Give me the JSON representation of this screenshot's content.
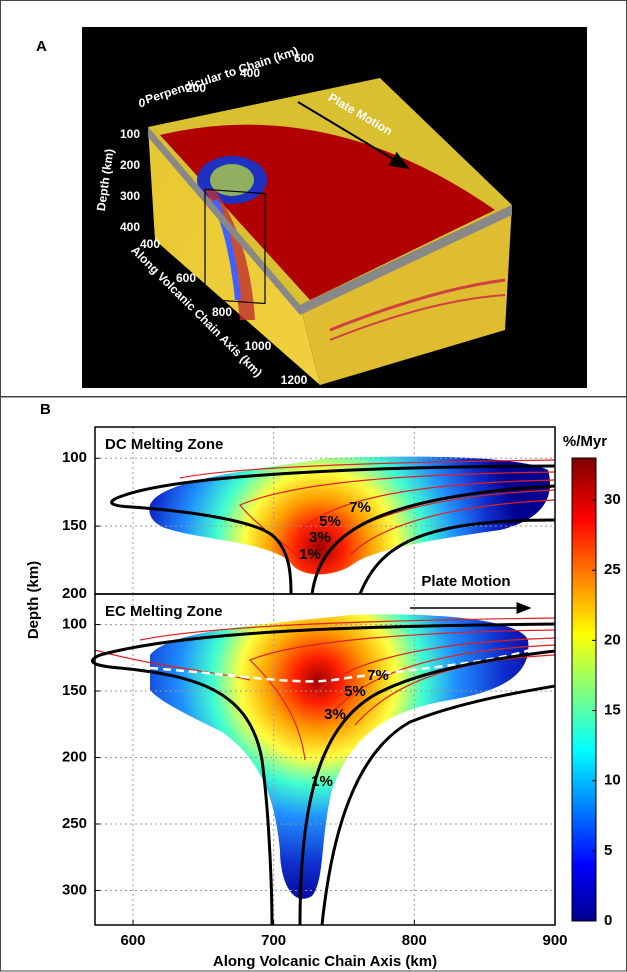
{
  "panel_a": {
    "label": "A",
    "perpendicular_label": "Perpendicular to Chain (km)",
    "perpendicular_ticks": [
      0,
      200,
      400,
      600
    ],
    "depth_label": "Depth (km)",
    "depth_ticks": [
      100,
      200,
      300,
      400
    ],
    "along_label": "Along Volcanic Chain Axis (km)",
    "along_ticks": [
      400,
      600,
      800,
      1000,
      1200
    ],
    "annotation": "Plate Motion"
  },
  "panel_b": {
    "label": "B",
    "y_label": "Depth (km)",
    "x_label": "Along Volcanic Chain Axis (km)",
    "annotation": "Plate Motion",
    "colorbar": {
      "title": "%/Myr",
      "lim": [
        0,
        33
      ],
      "ticks": [
        0,
        5,
        10,
        15,
        20,
        25,
        30
      ]
    }
  },
  "chart_data": [
    {
      "type": "contour",
      "title": "DC Melting Zone",
      "xlim": [
        573,
        900
      ],
      "ylim": [
        77,
        200
      ],
      "yticks": [
        100,
        150,
        200
      ],
      "y_inverted": true,
      "grid": true,
      "annotations": [
        "1%",
        "3%",
        "5%",
        "7%"
      ]
    },
    {
      "type": "contour",
      "title": "EC Melting Zone",
      "xlim": [
        573,
        900
      ],
      "ylim": [
        77,
        326
      ],
      "yticks": [
        100,
        150,
        200,
        250,
        300
      ],
      "xticks": [
        600,
        700,
        800,
        900
      ],
      "y_inverted": true,
      "grid": true,
      "annotations": [
        "1%",
        "3%",
        "5%",
        "7%"
      ]
    }
  ]
}
